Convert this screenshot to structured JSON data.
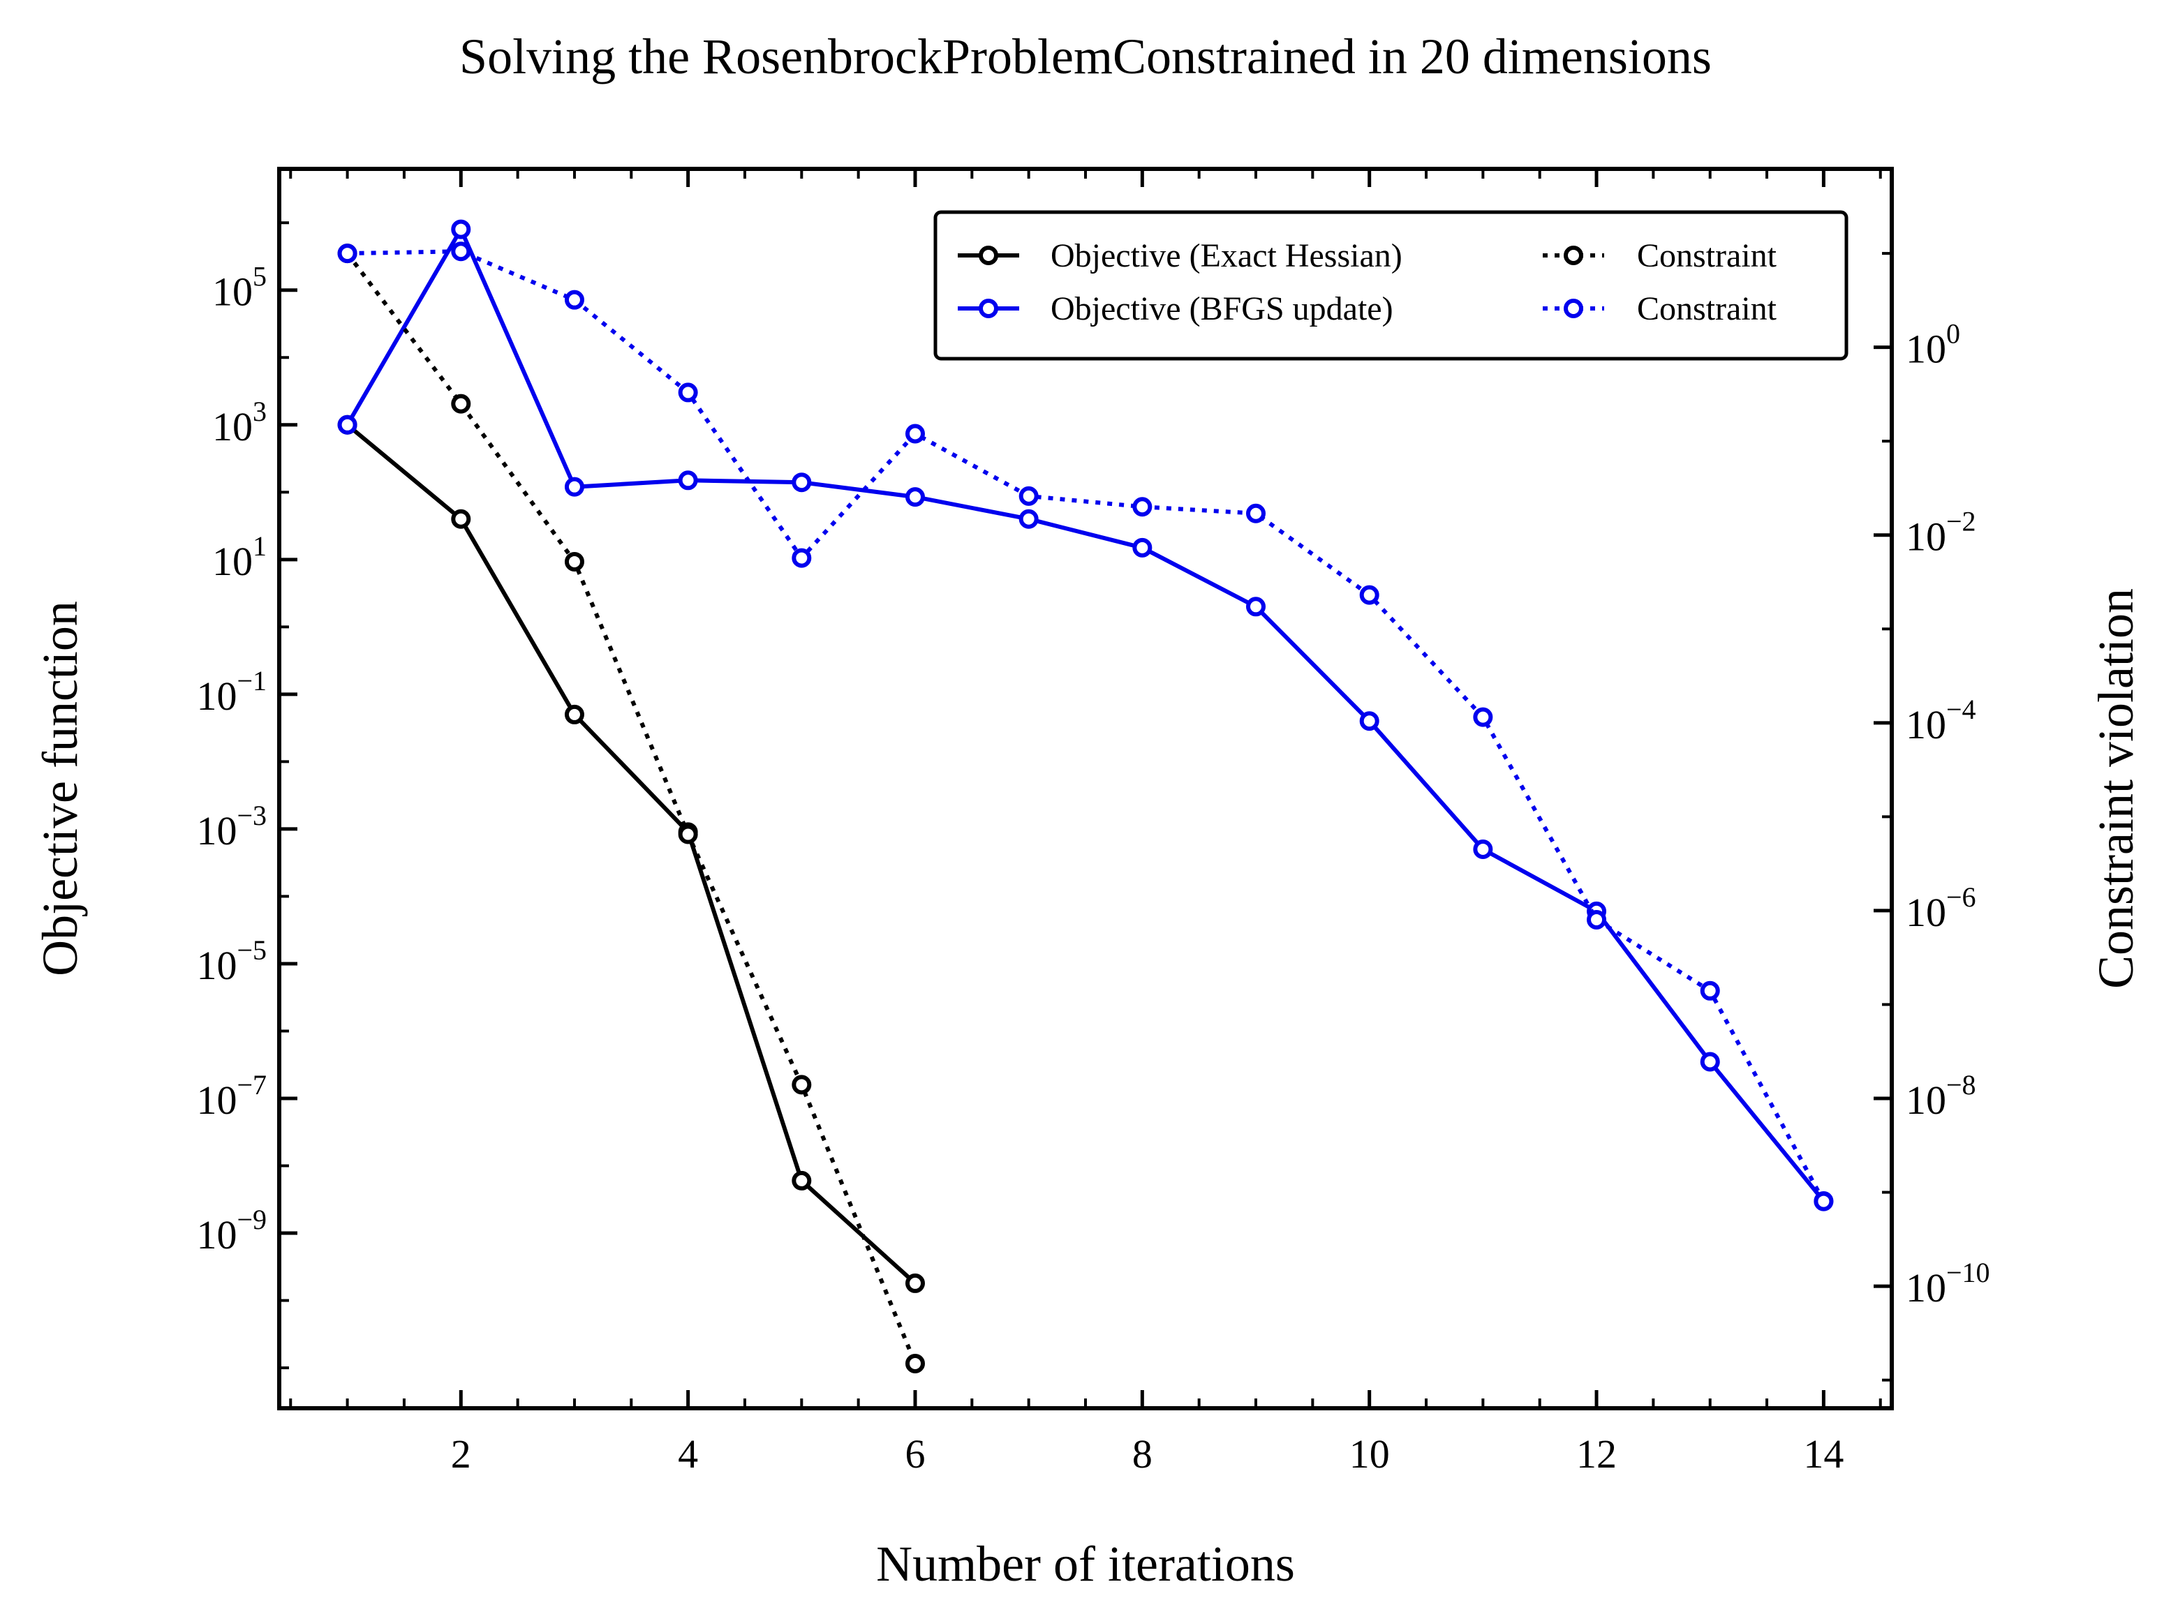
{
  "chart_data": {
    "type": "line",
    "title": "Solving the RosenbrockProblemConstrained in 20 dimensions",
    "xlabel": "Number of iterations",
    "ylabel": "Objective function",
    "y2label": "Constraint violation",
    "xlim": [
      0.4,
      14.6
    ],
    "ylim_log10": [
      -11.6,
      6.8
    ],
    "y2lim_log10": [
      -11.3,
      1.9
    ],
    "yscale": "log",
    "y2scale": "log",
    "x_ticks": [
      2,
      4,
      6,
      8,
      10,
      12,
      14
    ],
    "y_ticks_exp": [
      5,
      3,
      1,
      -1,
      -3,
      -5,
      -7,
      -9
    ],
    "y2_ticks_exp": [
      0,
      -2,
      -4,
      -6,
      -8,
      -10
    ],
    "tick_base": "10",
    "exp_minus": "−",
    "legend_position": "top-right",
    "colors": {
      "black": "#000000",
      "blue": "#0000ee"
    },
    "series": [
      {
        "name": "Objective (Exact Hessian)",
        "axis": "left",
        "color": "#000000",
        "dash": "solid",
        "x": [
          1,
          2,
          3,
          4,
          5,
          6
        ],
        "y": [
          1000,
          40,
          0.05,
          0.0009,
          6e-09,
          1.8e-10
        ]
      },
      {
        "name": "Objective (BFGS update)",
        "axis": "left",
        "color": "#0000ee",
        "dash": "solid",
        "x": [
          1,
          2,
          3,
          4,
          5,
          6,
          7,
          8,
          9,
          10,
          11,
          12,
          13,
          14
        ],
        "y": [
          1000,
          800000,
          120,
          150,
          140,
          85,
          40,
          15,
          2,
          0.04,
          0.0005,
          6e-05,
          3.5e-07,
          3e-09
        ]
      },
      {
        "name": "Constraint",
        "axis": "right",
        "color": "#000000",
        "dash": "dotted",
        "x": [
          1,
          2,
          3,
          4,
          5,
          6
        ],
        "y": [
          10,
          0.25,
          0.0052,
          6.5e-06,
          1.4e-08,
          1.5e-11
        ]
      },
      {
        "name": "Constraint",
        "axis": "right",
        "color": "#0000ee",
        "dash": "dotted",
        "x": [
          1,
          2,
          3,
          4,
          5,
          6,
          7,
          8,
          9,
          10,
          11,
          12,
          13,
          14
        ],
        "y": [
          10,
          10.5,
          3.2,
          0.33,
          0.0057,
          0.12,
          0.026,
          0.02,
          0.017,
          0.0023,
          0.000115,
          8e-07,
          1.4e-07,
          8e-10
        ]
      }
    ]
  }
}
